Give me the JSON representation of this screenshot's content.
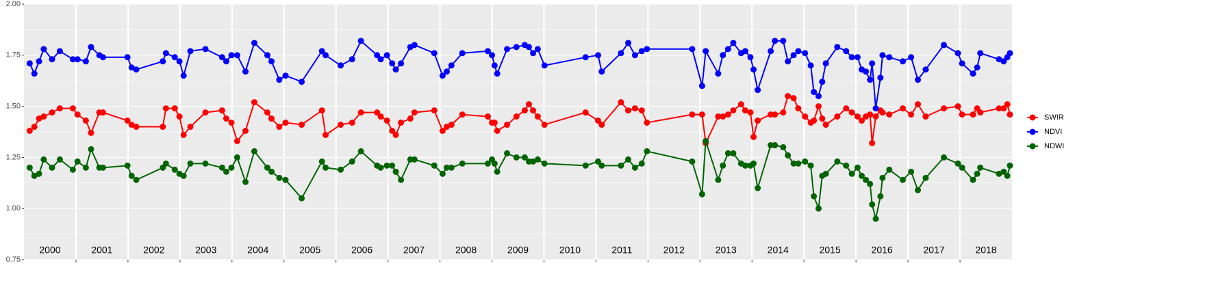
{
  "chart_data": {
    "type": "line",
    "legend": "right",
    "grid": true,
    "xlim": [
      2000,
      2019
    ],
    "ylim": [
      0.75,
      2.0
    ],
    "yticks": [
      0.75,
      {
        "value": 1.0,
        "label": "1.00"
      },
      1.25,
      {
        "value": 1.5,
        "label": "1.50"
      },
      1.75,
      {
        "value": 2.0,
        "label": "2.00"
      }
    ],
    "xticks": [
      {
        "value": 2000.5,
        "label": "2000"
      },
      {
        "value": 2001.5,
        "label": "2001"
      },
      {
        "value": 2002.5,
        "label": "2002"
      },
      {
        "value": 2003.5,
        "label": "2003"
      },
      {
        "value": 2004.5,
        "label": "2004"
      },
      {
        "value": 2005.5,
        "label": "2005"
      },
      {
        "value": 2006.5,
        "label": "2006"
      },
      {
        "value": 2007.5,
        "label": "2007"
      },
      {
        "value": 2008.5,
        "label": "2008"
      },
      {
        "value": 2009.5,
        "label": "2009"
      },
      {
        "value": 2010.5,
        "label": "2010"
      },
      {
        "value": 2011.5,
        "label": "2011"
      },
      {
        "value": 2012.5,
        "label": "2012"
      },
      {
        "value": 2013.5,
        "label": "2013"
      },
      {
        "value": 2014.5,
        "label": "2014"
      },
      {
        "value": 2015.5,
        "label": "2015"
      },
      {
        "value": 2016.5,
        "label": "2016"
      },
      {
        "value": 2017.5,
        "label": "2017"
      },
      {
        "value": 2018.5,
        "label": "2018"
      }
    ],
    "x": [
      2000.11,
      2000.2,
      2000.29,
      2000.38,
      2000.54,
      2000.69,
      2000.94,
      2001.03,
      2001.19,
      2001.29,
      2001.45,
      2001.52,
      2001.99,
      2002.07,
      2002.16,
      2002.67,
      2002.73,
      2002.9,
      2002.99,
      2003.07,
      2003.2,
      2003.49,
      2003.81,
      2003.89,
      2003.99,
      2004.1,
      2004.26,
      2004.43,
      2004.68,
      2004.76,
      2004.91,
      2005.03,
      2005.34,
      2005.73,
      2005.8,
      2006.09,
      2006.31,
      2006.48,
      2006.79,
      2006.86,
      2006.98,
      2007.08,
      2007.15,
      2007.25,
      2007.43,
      2007.51,
      2007.89,
      2008.05,
      2008.13,
      2008.22,
      2008.43,
      2008.92,
      2009.0,
      2009.05,
      2009.1,
      2009.29,
      2009.47,
      2009.63,
      2009.71,
      2009.79,
      2009.88,
      2010.01,
      2010.8,
      2011.04,
      2011.11,
      2011.48,
      2011.62,
      2011.75,
      2011.88,
      2011.98,
      2012.85,
      2013.04,
      2013.11,
      2013.35,
      2013.44,
      2013.54,
      2013.64,
      2013.79,
      2013.87,
      2013.97,
      2014.03,
      2014.11,
      2014.36,
      2014.44,
      2014.6,
      2014.69,
      2014.8,
      2014.89,
      2015.02,
      2015.13,
      2015.19,
      2015.28,
      2015.35,
      2015.42,
      2015.64,
      2015.81,
      2015.92,
      2016.03,
      2016.11,
      2016.19,
      2016.27,
      2016.31,
      2016.38,
      2016.47,
      2016.51,
      2016.64,
      2016.9,
      2017.06,
      2017.19,
      2017.34,
      2017.69,
      2017.96,
      2018.04,
      2018.25,
      2018.33,
      2018.39,
      2018.75,
      2018.84,
      2018.91,
      2018.96
    ],
    "series": [
      {
        "name": "SWIR",
        "color": "#ff0000",
        "values": [
          1.38,
          1.4,
          1.44,
          1.45,
          1.47,
          1.49,
          1.49,
          1.46,
          1.43,
          1.37,
          1.47,
          1.47,
          1.43,
          1.41,
          1.4,
          1.4,
          1.49,
          1.49,
          1.45,
          1.36,
          1.4,
          1.47,
          1.48,
          1.44,
          1.42,
          1.33,
          1.38,
          1.52,
          1.47,
          1.44,
          1.4,
          1.42,
          1.41,
          1.48,
          1.36,
          1.41,
          1.42,
          1.47,
          1.47,
          1.45,
          1.43,
          1.38,
          1.36,
          1.42,
          1.44,
          1.47,
          1.48,
          1.38,
          1.4,
          1.41,
          1.46,
          1.45,
          1.42,
          1.42,
          1.38,
          1.41,
          1.45,
          1.48,
          1.51,
          1.48,
          1.45,
          1.41,
          1.47,
          1.43,
          1.41,
          1.52,
          1.48,
          1.49,
          1.48,
          1.42,
          1.46,
          1.46,
          1.32,
          1.45,
          1.45,
          1.46,
          1.48,
          1.51,
          1.48,
          1.47,
          1.35,
          1.43,
          1.46,
          1.46,
          1.47,
          1.55,
          1.54,
          1.49,
          1.45,
          1.42,
          1.43,
          1.5,
          1.44,
          1.41,
          1.45,
          1.49,
          1.47,
          1.45,
          1.43,
          1.45,
          1.46,
          1.32,
          1.45,
          1.48,
          1.47,
          1.46,
          1.49,
          1.46,
          1.51,
          1.45,
          1.49,
          1.5,
          1.46,
          1.46,
          1.49,
          1.47,
          1.49,
          1.49,
          1.51,
          1.46
        ]
      },
      {
        "name": "NDVI",
        "color": "#0000ff",
        "values": [
          1.71,
          1.66,
          1.72,
          1.78,
          1.73,
          1.77,
          1.73,
          1.73,
          1.72,
          1.79,
          1.75,
          1.74,
          1.74,
          1.69,
          1.68,
          1.72,
          1.76,
          1.74,
          1.72,
          1.65,
          1.77,
          1.78,
          1.74,
          1.72,
          1.75,
          1.75,
          1.67,
          1.81,
          1.75,
          1.72,
          1.63,
          1.65,
          1.62,
          1.77,
          1.75,
          1.7,
          1.73,
          1.82,
          1.75,
          1.73,
          1.75,
          1.71,
          1.68,
          1.71,
          1.79,
          1.8,
          1.76,
          1.65,
          1.67,
          1.7,
          1.76,
          1.77,
          1.75,
          1.7,
          1.66,
          1.78,
          1.79,
          1.8,
          1.79,
          1.76,
          1.78,
          1.7,
          1.74,
          1.75,
          1.67,
          1.76,
          1.81,
          1.75,
          1.77,
          1.78,
          1.78,
          1.6,
          1.77,
          1.66,
          1.75,
          1.78,
          1.81,
          1.76,
          1.77,
          1.74,
          1.68,
          1.58,
          1.77,
          1.82,
          1.82,
          1.72,
          1.75,
          1.77,
          1.76,
          1.7,
          1.57,
          1.55,
          1.62,
          1.71,
          1.79,
          1.77,
          1.74,
          1.74,
          1.68,
          1.67,
          1.63,
          1.71,
          1.49,
          1.64,
          1.75,
          1.74,
          1.72,
          1.74,
          1.63,
          1.68,
          1.8,
          1.76,
          1.71,
          1.66,
          1.69,
          1.76,
          1.73,
          1.72,
          1.74,
          1.76
        ]
      },
      {
        "name": "NDWI",
        "color": "#006400",
        "values": [
          1.2,
          1.16,
          1.17,
          1.24,
          1.2,
          1.24,
          1.19,
          1.23,
          1.2,
          1.29,
          1.2,
          1.2,
          1.21,
          1.16,
          1.14,
          1.2,
          1.22,
          1.19,
          1.17,
          1.16,
          1.22,
          1.22,
          1.2,
          1.18,
          1.2,
          1.25,
          1.13,
          1.28,
          1.2,
          1.18,
          1.15,
          1.14,
          1.05,
          1.23,
          1.2,
          1.19,
          1.23,
          1.28,
          1.21,
          1.2,
          1.21,
          1.21,
          1.18,
          1.14,
          1.24,
          1.24,
          1.21,
          1.17,
          1.2,
          1.2,
          1.22,
          1.22,
          1.24,
          1.22,
          1.18,
          1.27,
          1.25,
          1.25,
          1.23,
          1.23,
          1.24,
          1.22,
          1.21,
          1.23,
          1.21,
          1.21,
          1.24,
          1.2,
          1.22,
          1.28,
          1.23,
          1.07,
          1.33,
          1.14,
          1.21,
          1.27,
          1.27,
          1.22,
          1.21,
          1.21,
          1.22,
          1.1,
          1.31,
          1.31,
          1.3,
          1.26,
          1.22,
          1.22,
          1.23,
          1.21,
          1.06,
          1.0,
          1.16,
          1.17,
          1.23,
          1.21,
          1.17,
          1.2,
          1.16,
          1.14,
          1.12,
          1.02,
          0.95,
          1.06,
          1.15,
          1.19,
          1.14,
          1.18,
          1.09,
          1.15,
          1.25,
          1.22,
          1.2,
          1.14,
          1.17,
          1.2,
          1.17,
          1.18,
          1.16,
          1.21
        ]
      }
    ]
  }
}
